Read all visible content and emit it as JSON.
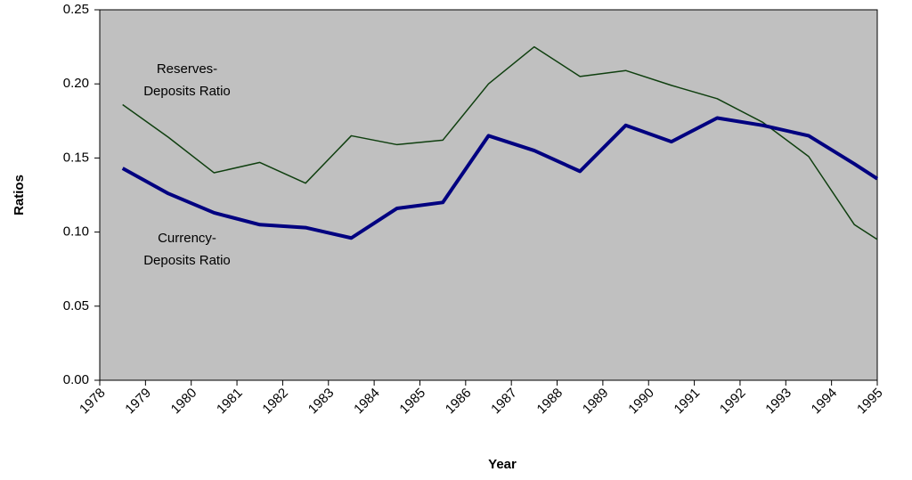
{
  "chart_data": {
    "type": "line",
    "x_label": "Year",
    "y_label": "Ratios",
    "x": [
      1978.5,
      1979.5,
      1980.5,
      1981.5,
      1982.5,
      1983.5,
      1984.5,
      1985.5,
      1986.5,
      1987.5,
      1988.5,
      1989.5,
      1990.5,
      1991.5,
      1992.5,
      1993.5,
      1994.5,
      1995
    ],
    "series": [
      {
        "name": "Reserves-Deposits Ratio",
        "color": "#0f3f0f",
        "values": [
          0.186,
          0.164,
          0.14,
          0.147,
          0.133,
          0.165,
          0.159,
          0.162,
          0.2,
          0.225,
          0.205,
          0.209,
          0.199,
          0.19,
          0.174,
          0.151,
          0.105,
          0.095
        ]
      },
      {
        "name": "Currency-Deposits Ratio",
        "color": "#000080",
        "values": [
          0.143,
          0.126,
          0.113,
          0.105,
          0.103,
          0.096,
          0.116,
          0.12,
          0.165,
          0.155,
          0.141,
          0.172,
          0.161,
          0.177,
          0.172,
          0.165,
          0.146,
          0.136
        ]
      }
    ],
    "annotations": [
      [
        "Reserves-",
        "Deposits Ratio"
      ],
      [
        "Currency-",
        "Deposits Ratio"
      ]
    ],
    "xlim": [
      1978,
      1995
    ],
    "xticks": [
      1978,
      1979,
      1980,
      1981,
      1982,
      1983,
      1984,
      1985,
      1986,
      1987,
      1988,
      1989,
      1990,
      1991,
      1992,
      1993,
      1994,
      1995
    ],
    "ylim": [
      0,
      0.25
    ],
    "yticks": [
      {
        "value": 0,
        "label": "0.00"
      },
      {
        "value": 0.05,
        "label": "0.05"
      },
      {
        "value": 0.1,
        "label": "0.10"
      },
      {
        "value": 0.15,
        "label": "0.15"
      },
      {
        "value": 0.2,
        "label": "0.20"
      },
      {
        "value": 0.25,
        "label": "0.25"
      }
    ],
    "plot_background": "#c0c0c0"
  }
}
